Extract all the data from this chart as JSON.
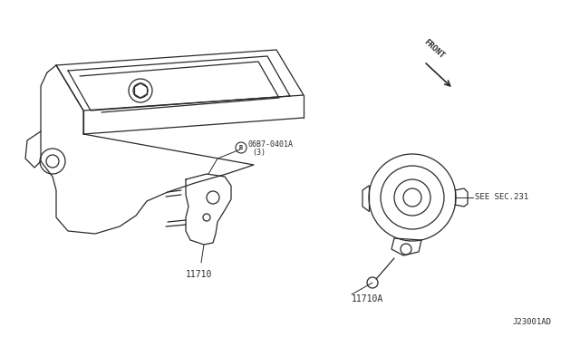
{
  "bg_color": "#ffffff",
  "line_color": "#2a2a2a",
  "figsize": [
    6.4,
    3.72
  ],
  "dpi": 100,
  "diagram_code": "J23001AD",
  "labels": {
    "front": "FRONT",
    "callout_b": "06B7-0401A",
    "callout_b2": "(3)",
    "part_11710": "11710",
    "part_11710A": "11710A",
    "see_sec": "SEE SEC.231"
  }
}
